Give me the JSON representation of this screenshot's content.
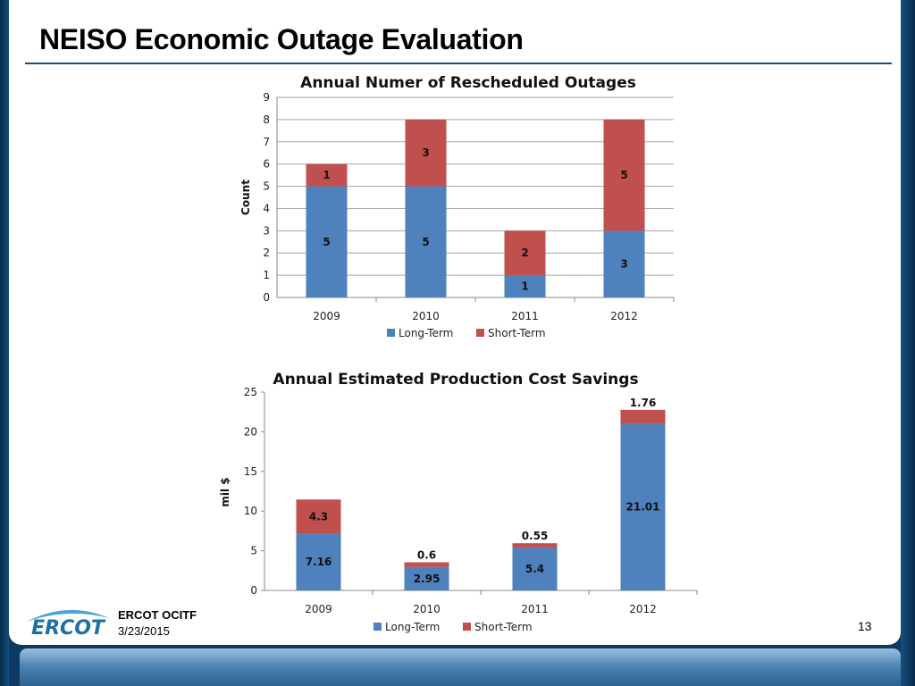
{
  "slide": {
    "title": "NEISO Economic Outage Evaluation",
    "footer_org": "ERCOT OCITF",
    "footer_date": "3/23/2015",
    "page_number": "13",
    "logo_text": "ERCOT"
  },
  "colors": {
    "long_term": "#4f81bd",
    "short_term": "#c0504d",
    "grid": "#a6a6a6"
  },
  "chart_data": [
    {
      "type": "bar",
      "stacked": true,
      "title": "Annual Numer of Rescheduled Outages",
      "xlabel": "",
      "ylabel": "Count",
      "categories": [
        "2009",
        "2010",
        "2011",
        "2012"
      ],
      "series": [
        {
          "name": "Long-Term",
          "values": [
            5,
            5,
            1,
            3
          ],
          "labels": [
            "5",
            "5",
            "1",
            "3"
          ]
        },
        {
          "name": "Short-Term",
          "values": [
            1,
            3,
            2,
            5
          ],
          "labels": [
            "1",
            "3",
            "2",
            "5"
          ]
        }
      ],
      "ylim": [
        0,
        9
      ],
      "yticks": [
        "0",
        "1",
        "2",
        "3",
        "4",
        "5",
        "6",
        "7",
        "8",
        "9"
      ],
      "grid": true,
      "legend_position": "bottom"
    },
    {
      "type": "bar",
      "stacked": true,
      "title": "Annual Estimated Production Cost Savings",
      "xlabel": "",
      "ylabel": "mil $",
      "categories": [
        "2009",
        "2010",
        "2011",
        "2012"
      ],
      "series": [
        {
          "name": "Long-Term",
          "values": [
            7.16,
            2.95,
            5.4,
            21.01
          ],
          "labels": [
            "7.16",
            "2.95",
            "5.4",
            "21.01"
          ]
        },
        {
          "name": "Short-Term",
          "values": [
            4.3,
            0.6,
            0.55,
            1.76
          ],
          "labels": [
            "4.3",
            "0.6",
            "0.55",
            "1.76"
          ]
        }
      ],
      "ylim": [
        0,
        25
      ],
      "yticks": [
        "0",
        "5",
        "10",
        "15",
        "20",
        "25"
      ],
      "grid": false,
      "legend_position": "bottom"
    }
  ]
}
